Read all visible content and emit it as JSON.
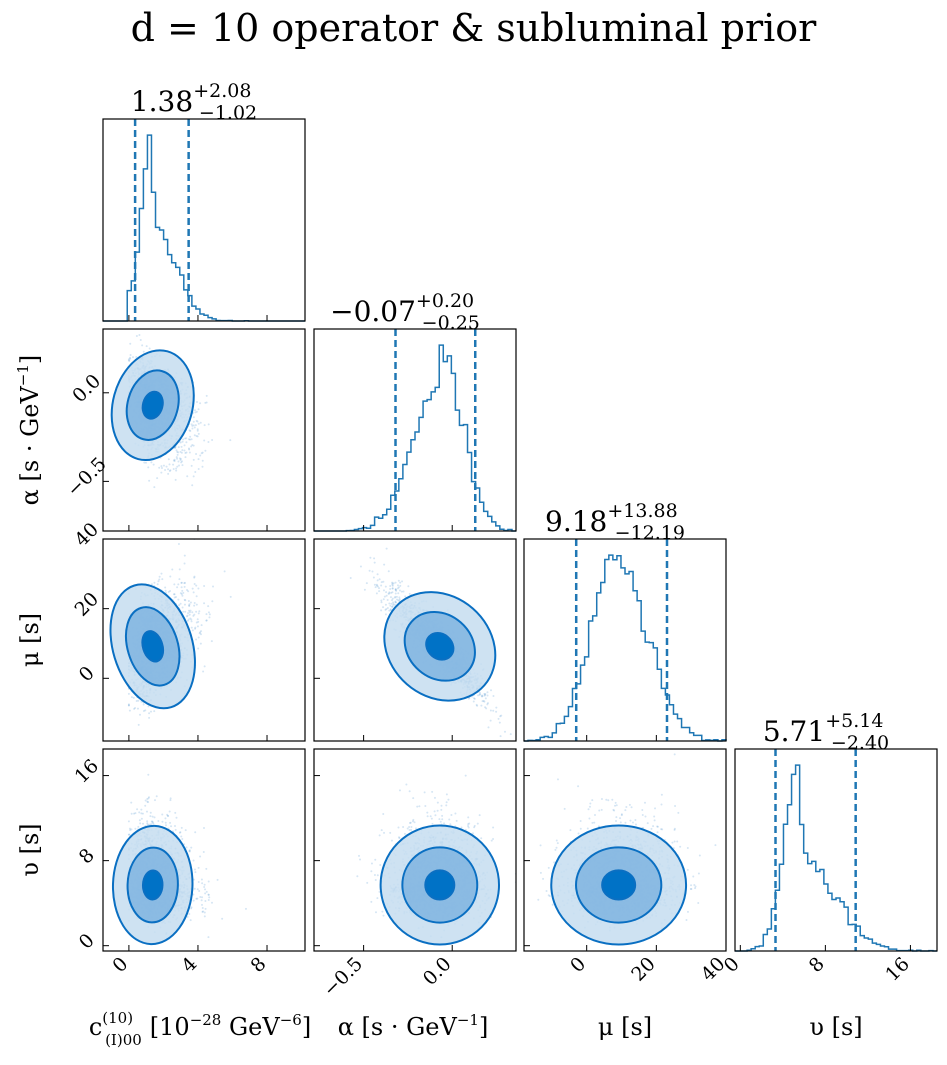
{
  "chart_data": {
    "type": "corner",
    "title": "d = 10 operator & subluminal prior",
    "colors": {
      "line": "#1f77b4",
      "contour_outer": "#c6ddf0",
      "contour_mid": "#7fb4e0",
      "contour_inner": "#0072c6",
      "contour_edge": "#0a6fc2",
      "scatter": "#5b9bd5"
    },
    "parameters": [
      {
        "id": "c10",
        "label_parts": [
          "c",
          "(10)",
          "(I)00",
          "[10",
          "−28",
          " GeV",
          "−6",
          "]"
        ],
        "median": 1.38,
        "plus": 2.08,
        "minus": 1.02,
        "median_text": "1.38",
        "plus_text": "+2.08",
        "minus_text": "−1.02",
        "range": [
          -1.5,
          10.2
        ],
        "ticks": [
          0,
          4,
          8
        ],
        "tick_labels": [
          "0",
          "4",
          "8"
        ],
        "bounds": [
          0,
          10
        ]
      },
      {
        "id": "alpha",
        "label_parts": [
          "α",
          "[s · GeV",
          "−1",
          "]"
        ],
        "median": -0.07,
        "plus": 0.2,
        "minus": 0.25,
        "median_text": "−0.07",
        "plus_text": "+0.20",
        "minus_text": "−0.25",
        "range": [
          -0.78,
          0.36
        ],
        "ticks": [
          -0.5,
          0.0
        ],
        "tick_labels": [
          "−0.5",
          "0.0"
        ],
        "bounds": [
          -0.78,
          0.36
        ]
      },
      {
        "id": "mu",
        "label_parts": [
          "μ",
          "[s]"
        ],
        "median": 9.18,
        "plus": 13.88,
        "minus": 12.19,
        "median_text": "9.18",
        "plus_text": "+13.88",
        "minus_text": "−12.19",
        "range": [
          -18,
          40
        ],
        "ticks": [
          0,
          20,
          40
        ],
        "tick_labels": [
          "0",
          "20",
          "40"
        ],
        "bounds": [
          -18,
          40
        ]
      },
      {
        "id": "upsilon",
        "label_parts": [
          "υ",
          "[s]"
        ],
        "median": 5.71,
        "plus": 5.14,
        "minus": 2.4,
        "median_text": "5.71",
        "plus_text": "+5.14",
        "minus_text": "−2.40",
        "range": [
          -0.5,
          18.5
        ],
        "ticks": [
          0,
          8,
          16
        ],
        "tick_labels": [
          "0",
          "8",
          "16"
        ],
        "bounds": [
          0,
          18
        ]
      }
    ],
    "correlations": {
      "alpha|c10": -0.45,
      "mu|c10": 0.45,
      "mu|alpha": -0.9,
      "upsilon|c10": -0.15,
      "upsilon|alpha": 0.0,
      "upsilon|mu": 0.0
    }
  }
}
